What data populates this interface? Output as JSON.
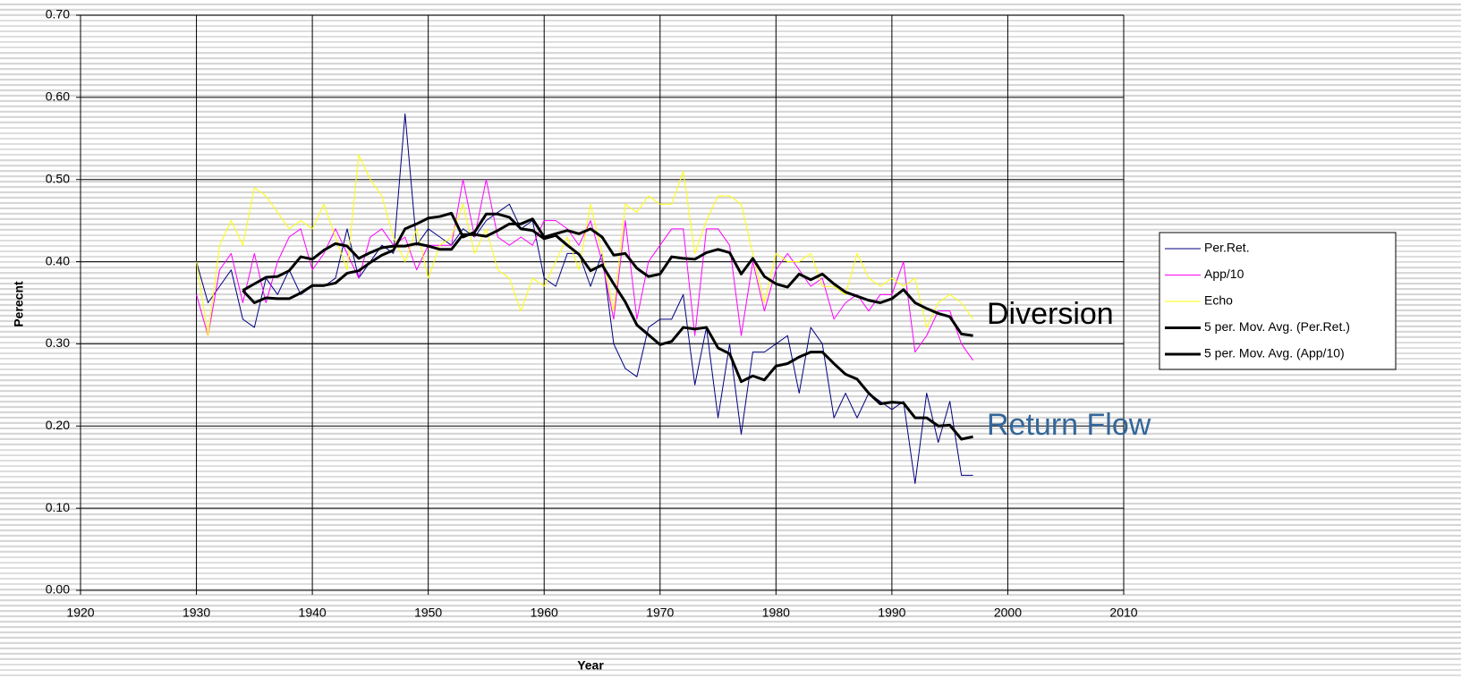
{
  "chart_data": {
    "type": "line",
    "x_label": "Year",
    "y_label": "Perecnt",
    "x": [
      1930,
      1931,
      1932,
      1933,
      1934,
      1935,
      1936,
      1937,
      1938,
      1939,
      1940,
      1941,
      1942,
      1943,
      1944,
      1945,
      1946,
      1947,
      1948,
      1949,
      1950,
      1951,
      1952,
      1953,
      1954,
      1955,
      1956,
      1957,
      1958,
      1959,
      1960,
      1961,
      1962,
      1963,
      1964,
      1965,
      1966,
      1967,
      1968,
      1969,
      1970,
      1971,
      1972,
      1973,
      1974,
      1975,
      1976,
      1977,
      1978,
      1979,
      1980,
      1981,
      1982,
      1983,
      1984,
      1985,
      1986,
      1987,
      1988,
      1989,
      1990,
      1991,
      1992,
      1993,
      1994,
      1995,
      1996,
      1997
    ],
    "series": [
      {
        "name": "Per.Ret.",
        "color": "#000080",
        "width": 1,
        "values": [
          0.4,
          0.35,
          0.37,
          0.39,
          0.33,
          0.32,
          0.38,
          0.36,
          0.39,
          0.36,
          0.37,
          0.37,
          0.38,
          0.44,
          0.38,
          0.4,
          0.42,
          0.41,
          0.58,
          0.42,
          0.44,
          0.43,
          0.42,
          0.44,
          0.43,
          0.45,
          0.46,
          0.47,
          0.44,
          0.45,
          0.38,
          0.37,
          0.41,
          0.41,
          0.37,
          0.41,
          0.3,
          0.27,
          0.26,
          0.32,
          0.33,
          0.33,
          0.36,
          0.25,
          0.32,
          0.21,
          0.3,
          0.19,
          0.29,
          0.29,
          0.3,
          0.31,
          0.24,
          0.32,
          0.3,
          0.21,
          0.24,
          0.21,
          0.24,
          0.23,
          0.22,
          0.23,
          0.13,
          0.24,
          0.18,
          0.23,
          0.14,
          0.14
        ]
      },
      {
        "name": "App/10",
        "color": "#ff00ff",
        "width": 1,
        "values": [
          0.36,
          0.31,
          0.39,
          0.41,
          0.35,
          0.41,
          0.35,
          0.4,
          0.43,
          0.44,
          0.39,
          0.41,
          0.44,
          0.41,
          0.38,
          0.43,
          0.44,
          0.42,
          0.43,
          0.39,
          0.42,
          0.42,
          0.42,
          0.5,
          0.43,
          0.5,
          0.43,
          0.42,
          0.43,
          0.42,
          0.45,
          0.45,
          0.44,
          0.42,
          0.45,
          0.4,
          0.33,
          0.45,
          0.33,
          0.4,
          0.42,
          0.44,
          0.44,
          0.31,
          0.44,
          0.44,
          0.42,
          0.31,
          0.4,
          0.34,
          0.39,
          0.41,
          0.39,
          0.37,
          0.38,
          0.33,
          0.35,
          0.36,
          0.34,
          0.36,
          0.36,
          0.4,
          0.29,
          0.31,
          0.34,
          0.34,
          0.3,
          0.28
        ]
      },
      {
        "name": "Echo",
        "color": "#ffff00",
        "width": 1,
        "values": [
          0.4,
          0.31,
          0.42,
          0.45,
          0.42,
          0.49,
          0.48,
          0.46,
          0.44,
          0.45,
          0.44,
          0.47,
          0.43,
          0.39,
          0.53,
          0.5,
          0.48,
          0.43,
          0.4,
          0.44,
          0.38,
          0.42,
          0.43,
          0.47,
          0.41,
          0.44,
          0.39,
          0.38,
          0.34,
          0.38,
          0.37,
          0.4,
          0.43,
          0.39,
          0.47,
          0.41,
          0.34,
          0.47,
          0.46,
          0.48,
          0.47,
          0.47,
          0.51,
          0.41,
          0.45,
          0.48,
          0.48,
          0.47,
          0.41,
          0.35,
          0.41,
          0.4,
          0.4,
          0.41,
          0.37,
          0.37,
          0.36,
          0.41,
          0.38,
          0.37,
          0.38,
          0.37,
          0.38,
          0.32,
          0.35,
          0.36,
          0.35,
          0.33
        ]
      },
      {
        "name": "5 per. Mov. Avg. (Per.Ret.)",
        "color": "#000000",
        "width": 3,
        "values": [
          null,
          null,
          null,
          null,
          0.365,
          0.35,
          0.356,
          0.355,
          0.355,
          0.362,
          0.371,
          0.371,
          0.374,
          0.386,
          0.389,
          0.399,
          0.408,
          0.414,
          0.44,
          0.446,
          0.453,
          0.455,
          0.459,
          0.43,
          0.436,
          0.458,
          0.458,
          0.454,
          0.44,
          0.438,
          0.428,
          0.432,
          0.42,
          0.409,
          0.389,
          0.396,
          0.373,
          0.351,
          0.323,
          0.311,
          0.299,
          0.303,
          0.32,
          0.318,
          0.32,
          0.295,
          0.288,
          0.254,
          0.261,
          0.256,
          0.273,
          0.276,
          0.284,
          0.29,
          0.29,
          0.276,
          0.263,
          0.257,
          0.24,
          0.227,
          0.229,
          0.228,
          0.21,
          0.21,
          0.2,
          0.201,
          0.184,
          0.187
        ]
      },
      {
        "name": "5 per. Mov. Avg. (App/10)",
        "color": "#000000",
        "width": 3,
        "values": [
          null,
          null,
          null,
          null,
          0.365,
          0.373,
          0.381,
          0.382,
          0.389,
          0.406,
          0.403,
          0.414,
          0.422,
          0.419,
          0.404,
          0.411,
          0.417,
          0.419,
          0.419,
          0.422,
          0.419,
          0.415,
          0.415,
          0.433,
          0.433,
          0.431,
          0.438,
          0.446,
          0.446,
          0.452,
          0.43,
          0.434,
          0.438,
          0.434,
          0.44,
          0.43,
          0.408,
          0.41,
          0.392,
          0.382,
          0.385,
          0.406,
          0.404,
          0.403,
          0.411,
          0.415,
          0.411,
          0.385,
          0.404,
          0.382,
          0.373,
          0.369,
          0.385,
          0.378,
          0.385,
          0.373,
          0.363,
          0.358,
          0.353,
          0.35,
          0.355,
          0.366,
          0.35,
          0.343,
          0.337,
          0.333,
          0.312,
          0.31
        ]
      }
    ],
    "annotations": [
      {
        "text": "Diversion",
        "color": "#000000"
      },
      {
        "text": "Return Flow",
        "color": "#336699"
      }
    ],
    "xlim": [
      1920,
      2010
    ],
    "xticks": [
      1920,
      1930,
      1940,
      1950,
      1960,
      1970,
      1980,
      1990,
      2000,
      2010
    ],
    "ylim": [
      0,
      0.7
    ],
    "yticks": [
      {
        "value": 0,
        "label": "0.00"
      },
      {
        "value": 0.1,
        "label": "0.10"
      },
      {
        "value": 0.2,
        "label": "0.20"
      },
      {
        "value": 0.3,
        "label": "0.30"
      },
      {
        "value": 0.4,
        "label": "0.40"
      },
      {
        "value": 0.5,
        "label": "0.50"
      },
      {
        "value": 0.6,
        "label": "0.60"
      },
      {
        "value": 0.7,
        "label": "0.70"
      }
    ],
    "grid": true,
    "legend": "right"
  }
}
